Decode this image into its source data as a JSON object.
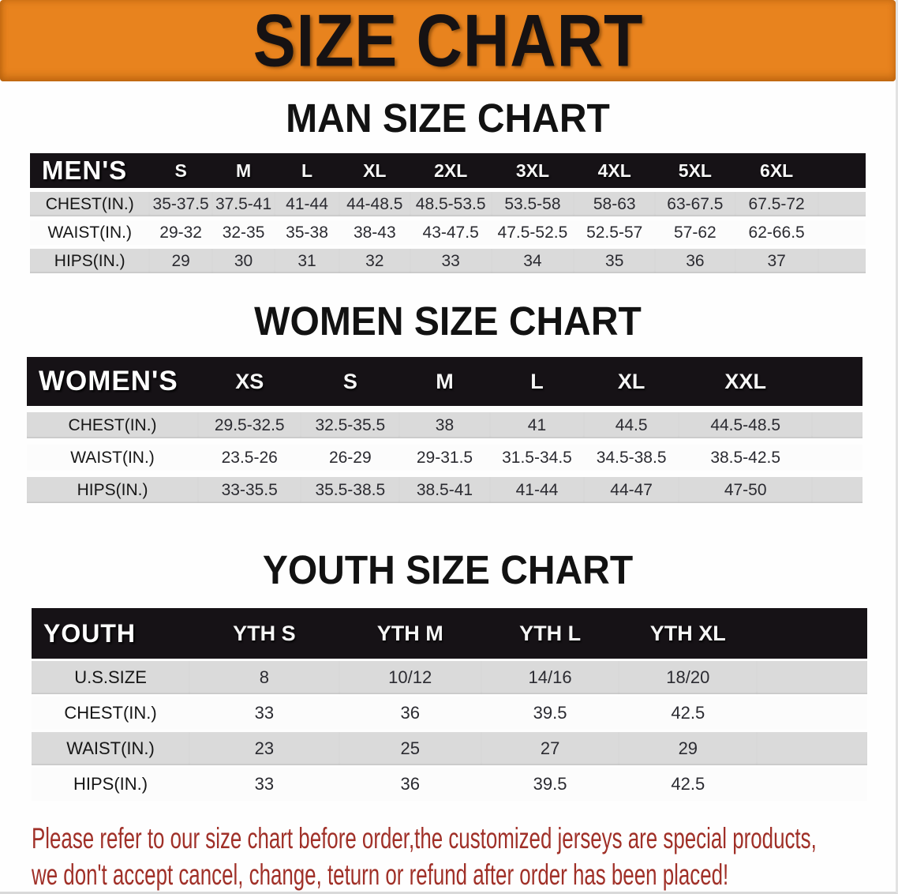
{
  "banner": {
    "title": "SIZE CHART"
  },
  "sections": [
    {
      "heading": "MAN SIZE CHART",
      "table": {
        "header_label": "MEN'S",
        "columns": [
          "S",
          "M",
          "L",
          "XL",
          "2XL",
          "3XL",
          "4XL",
          "5XL",
          "6XL"
        ],
        "rows": [
          {
            "label": "CHEST(IN.)",
            "values": [
              "35-37.5",
              "37.5-41",
              "41-44",
              "44-48.5",
              "48.5-53.5",
              "53.5-58",
              "58-63",
              "63-67.5",
              "67.5-72"
            ]
          },
          {
            "label": "WAIST(IN.)",
            "values": [
              "29-32",
              "32-35",
              "35-38",
              "38-43",
              "43-47.5",
              "47.5-52.5",
              "52.5-57",
              "57-62",
              "62-66.5"
            ]
          },
          {
            "label": "HIPS(IN.)",
            "values": [
              "29",
              "30",
              "31",
              "32",
              "33",
              "34",
              "35",
              "36",
              "37"
            ]
          }
        ]
      }
    },
    {
      "heading": "WOMEN SIZE CHART",
      "table": {
        "header_label": "WOMEN'S",
        "columns": [
          "XS",
          "S",
          "M",
          "L",
          "XL",
          "XXL"
        ],
        "rows": [
          {
            "label": "CHEST(IN.)",
            "values": [
              "29.5-32.5",
              "32.5-35.5",
              "38",
              "41",
              "44.5",
              "44.5-48.5"
            ]
          },
          {
            "label": "WAIST(IN.)",
            "values": [
              "23.5-26",
              "26-29",
              "29-31.5",
              "31.5-34.5",
              "34.5-38.5",
              "38.5-42.5"
            ]
          },
          {
            "label": "HIPS(IN.)",
            "values": [
              "33-35.5",
              "35.5-38.5",
              "38.5-41",
              "41-44",
              "44-47",
              "47-50"
            ]
          }
        ]
      }
    },
    {
      "heading": "YOUTH SIZE CHART",
      "table": {
        "header_label": "YOUTH",
        "columns": [
          "YTH S",
          "YTH M",
          "YTH L",
          "YTH XL"
        ],
        "rows": [
          {
            "label": "U.S.SIZE",
            "values": [
              "8",
              "10/12",
              "14/16",
              "18/20"
            ]
          },
          {
            "label": "CHEST(IN.)",
            "values": [
              "33",
              "36",
              "39.5",
              "42.5"
            ]
          },
          {
            "label": "WAIST(IN.)",
            "values": [
              "23",
              "25",
              "27",
              "29"
            ]
          },
          {
            "label": "HIPS(IN.)",
            "values": [
              "33",
              "36",
              "39.5",
              "42.5"
            ]
          }
        ]
      }
    }
  ],
  "disclaimer": {
    "line1": "Please refer to our size chart before order,the customized jerseys are special products,",
    "line2": "we don't accept cancel, change, teturn or refund after order has been placed!"
  },
  "colors": {
    "banner_bg": "#E8831E",
    "header_bar_bg": "#161216",
    "stripe_gray": "#DADADA",
    "disclaimer_red": "#A03028"
  }
}
